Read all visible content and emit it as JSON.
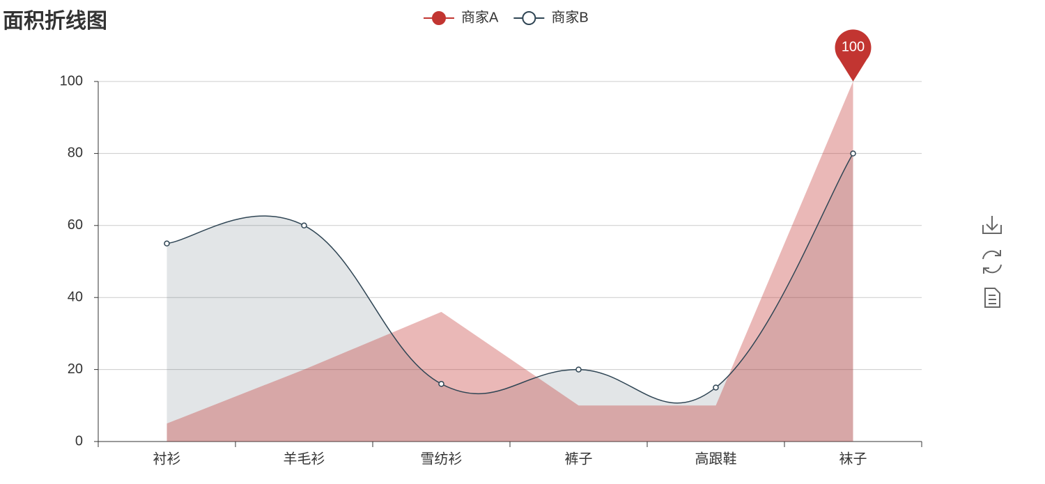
{
  "chart_data": {
    "type": "area-line",
    "title": "面积折线图",
    "categories": [
      "衬衫",
      "羊毛衫",
      "雪纺衫",
      "裤子",
      "高跟鞋",
      "袜子"
    ],
    "series": [
      {
        "name": "商家A",
        "color": "#c23531",
        "values": [
          5,
          20,
          36,
          10,
          10,
          100
        ]
      },
      {
        "name": "商家B",
        "color": "#2f4554",
        "values": [
          55,
          60,
          16,
          20,
          15,
          80
        ]
      }
    ],
    "ylim": [
      0,
      100
    ],
    "yticks": [
      0,
      20,
      40,
      60,
      80,
      100
    ],
    "grid": true
  }
}
